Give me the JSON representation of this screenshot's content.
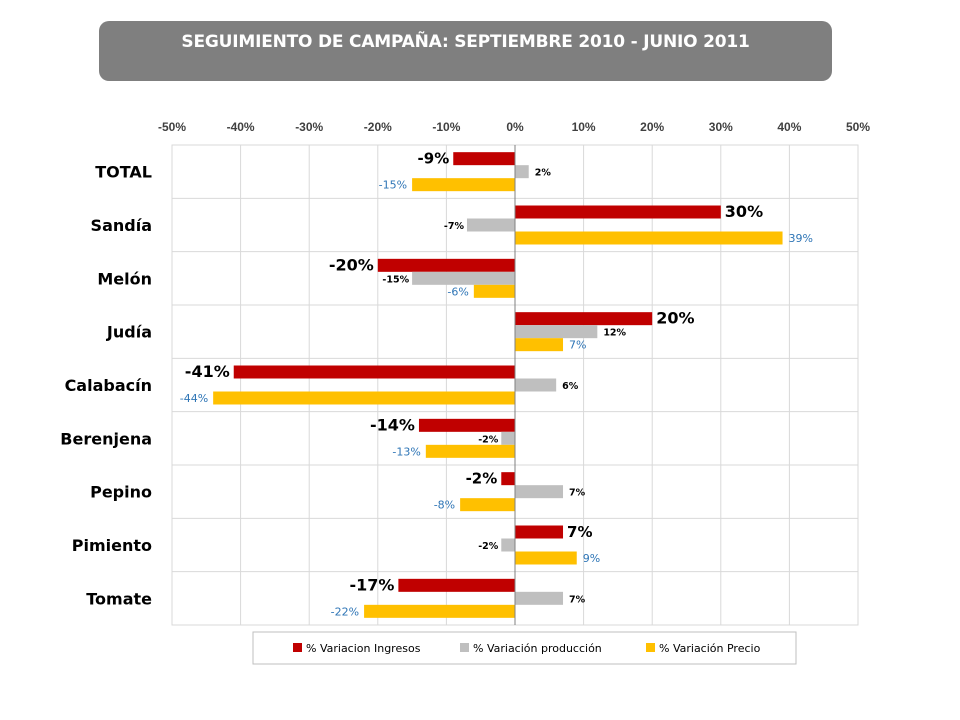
{
  "header": {
    "title": "SEGUIMIENTO DE CAMPAÑA: SEPTIEMBRE 2010 - JUNIO 2011"
  },
  "chart_data": {
    "type": "bar",
    "orientation": "horizontal",
    "title": "",
    "xlim": [
      -0.5,
      0.5
    ],
    "x_ticks": [
      "-50%",
      "-40%",
      "-30%",
      "-20%",
      "-10%",
      "0%",
      "10%",
      "20%",
      "30%",
      "40%",
      "50%"
    ],
    "x_tick_values": [
      -0.5,
      -0.4,
      -0.3,
      -0.2,
      -0.1,
      0,
      0.1,
      0.2,
      0.3,
      0.4,
      0.5
    ],
    "x_axis_position": "top",
    "grid": true,
    "legend_position": "bottom",
    "categories": [
      "TOTAL",
      "Sandía",
      "Melón",
      "Judía",
      "Calabacín",
      "Berenjena",
      "Pepino",
      "Pimiento",
      "Tomate"
    ],
    "series": [
      {
        "name": "% Variacion Ingresos",
        "color": "#c00000",
        "values": [
          -0.09,
          0.3,
          -0.2,
          0.2,
          -0.41,
          -0.14,
          -0.02,
          0.07,
          -0.17
        ],
        "labels": [
          "-9%",
          "30%",
          "-20%",
          "20%",
          "-41%",
          "-14%",
          "-2%",
          "7%",
          "-17%"
        ]
      },
      {
        "name": "% Variación producción",
        "color": "#bfbfbf",
        "values": [
          0.02,
          -0.07,
          -0.15,
          0.12,
          0.06,
          -0.02,
          0.07,
          -0.02,
          0.07
        ],
        "labels": [
          "2%",
          "-7%",
          "-15%",
          "12%",
          "6%",
          "-2%",
          "7%",
          "-2%",
          "7%"
        ]
      },
      {
        "name": "% Variación Precio",
        "color": "#ffc000",
        "values": [
          -0.15,
          0.39,
          -0.06,
          0.07,
          -0.44,
          -0.13,
          -0.08,
          0.09,
          -0.22
        ],
        "labels": [
          "-15%",
          "39%",
          "-6%",
          "7%",
          "-44%",
          "-13%",
          "-8%",
          "9%",
          "-22%"
        ]
      }
    ]
  }
}
